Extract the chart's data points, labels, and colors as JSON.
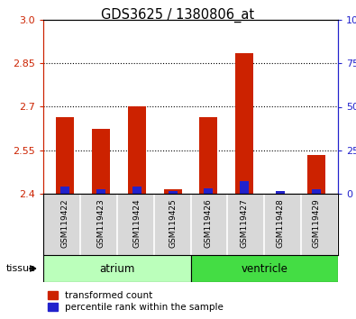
{
  "title": "GDS3625 / 1380806_at",
  "samples": [
    "GSM119422",
    "GSM119423",
    "GSM119424",
    "GSM119425",
    "GSM119426",
    "GSM119427",
    "GSM119428",
    "GSM119429"
  ],
  "red_values": [
    2.665,
    2.625,
    2.7,
    2.415,
    2.665,
    2.885,
    2.4,
    2.535
  ],
  "blue_values": [
    2.425,
    2.415,
    2.425,
    2.41,
    2.42,
    2.445,
    2.41,
    2.415
  ],
  "y_min": 2.4,
  "y_max": 3.0,
  "y_ticks_red": [
    2.4,
    2.55,
    2.7,
    2.85,
    3.0
  ],
  "y_ticks_blue": [
    0,
    25,
    50,
    75,
    100
  ],
  "tissue_groups": [
    {
      "label": "atrium",
      "start": 0,
      "end": 4,
      "color": "#bbffbb"
    },
    {
      "label": "ventricle",
      "start": 4,
      "end": 8,
      "color": "#44dd44"
    }
  ],
  "legend_red_label": "transformed count",
  "legend_blue_label": "percentile rank within the sample",
  "bar_width": 0.5,
  "red_color": "#cc2200",
  "blue_color": "#2222cc",
  "tissue_label": "tissue",
  "background_color": "#ffffff",
  "plot_bg_color": "#ffffff",
  "axis_bg_color": "#d8d8d8"
}
